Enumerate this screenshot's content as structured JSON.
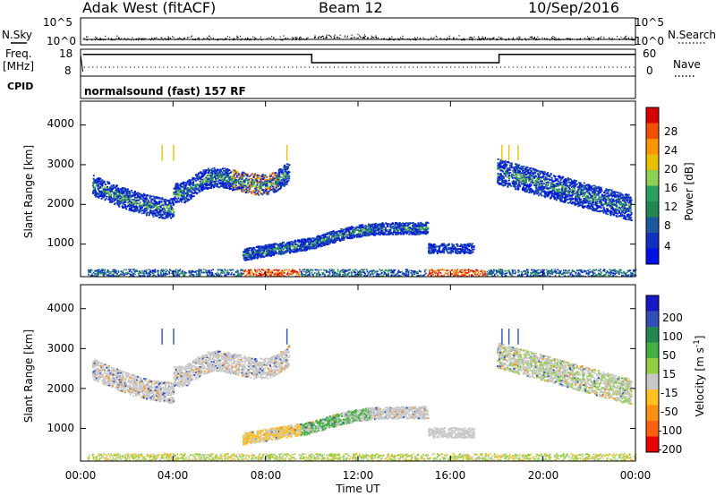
{
  "header": {
    "station": "Adak West (fitACF)",
    "beam": "Beam 12",
    "date": "10/Sep/2016"
  },
  "panel_labels": {
    "nsky": "N.Sky",
    "nsearch": "N.Search",
    "freq": "Freq.",
    "freq_unit": "[MHz]",
    "cpid": "CPID",
    "nave": "Nave",
    "cpid_value": "normalsound (fast) 157 RF"
  },
  "noise_axis": {
    "left_ticks": [
      "10^5",
      "10^0"
    ],
    "right_ticks": [
      "10^5",
      "10^0"
    ]
  },
  "freq_axis": {
    "left_ticks": [
      "18",
      "8"
    ],
    "right_ticks": [
      "60",
      "0"
    ]
  },
  "time_axis": {
    "label": "Time UT",
    "ticks": [
      "00:00",
      "04:00",
      "08:00",
      "12:00",
      "16:00",
      "20:00",
      "00:00"
    ]
  },
  "range_axis": {
    "label": "Slant Range [km]",
    "ticks": [
      "1000",
      "2000",
      "3000",
      "4000"
    ]
  },
  "power_bar": {
    "label": "Power [dB]",
    "ticks": [
      "28",
      "24",
      "20",
      "16",
      "12",
      "8",
      "4"
    ],
    "colors": [
      "#d80000",
      "#f25000",
      "#ff9400",
      "#e8c000",
      "#8ed050",
      "#2aa060",
      "#208850",
      "#1a58a0",
      "#1030c0",
      "#0010e8"
    ]
  },
  "velocity_bar": {
    "label": "Velocity [m s",
    "label_sup": "-1",
    "label_end": "]",
    "ticks": [
      "200",
      "100",
      "50",
      "15",
      "-15",
      "-50",
      "-100",
      "-200"
    ],
    "colors": [
      "#1818c8",
      "#3050b8",
      "#208850",
      "#44b040",
      "#90d040",
      "#c8c8c8",
      "#ffc020",
      "#ff9010",
      "#ff6010",
      "#e80000"
    ]
  },
  "chart_data": [
    {
      "type": "line",
      "title": "N.Sky / N.Search",
      "x_hours": [
        0,
        0.1,
        10,
        14,
        18,
        22,
        24
      ],
      "series": [
        {
          "name": "N.Sky",
          "values": [
            0.5,
            0.5,
            0.6,
            0.7,
            0.6,
            0.5,
            0.5
          ]
        }
      ]
    },
    {
      "type": "line",
      "title": "Freq. / Nave",
      "x_hours": [
        0.1,
        10.0,
        10.0,
        18.1,
        18.1,
        24
      ],
      "series": [
        {
          "name": "Freq. (MHz)",
          "values": [
            15.5,
            15.5,
            11.5,
            11.5,
            15.5,
            15.5
          ]
        },
        {
          "name": "Nave",
          "values": [
            7,
            7,
            7,
            7,
            7,
            7
          ]
        }
      ]
    },
    {
      "type": "heatmap",
      "title": "Power",
      "xlabel": "Time UT",
      "ylabel": "Slant Range [km]",
      "xlim_hours": [
        0,
        24
      ],
      "ylim_km": [
        180,
        4600
      ],
      "colorbar_label": "Power [dB]",
      "features": [
        {
          "name": "evening band",
          "hours": [
            0.5,
            9.0
          ],
          "range_km": [
            1850,
            2800
          ]
        },
        {
          "name": "mid band",
          "hours": [
            7.0,
            15.0
          ],
          "range_km": [
            700,
            1600
          ]
        },
        {
          "name": "patch",
          "hours": [
            15.0,
            17.0
          ],
          "range_km": [
            800,
            1000
          ]
        },
        {
          "name": "morning band",
          "hours": [
            18.0,
            23.8
          ],
          "range_km": [
            1800,
            3000
          ]
        },
        {
          "name": "near-range",
          "hours": [
            0.3,
            24
          ],
          "range_km": [
            200,
            360
          ]
        }
      ]
    },
    {
      "type": "heatmap",
      "title": "Velocity",
      "xlabel": "Time UT",
      "ylabel": "Slant Range [km]",
      "xlim_hours": [
        0,
        24
      ],
      "ylim_km": [
        180,
        4600
      ],
      "colorbar_label": "Velocity [m s-1]",
      "features": [
        {
          "name": "evening band",
          "hours": [
            0.5,
            9.0
          ],
          "range_km": [
            1850,
            2800
          ]
        },
        {
          "name": "mid band",
          "hours": [
            7.0,
            15.0
          ],
          "range_km": [
            700,
            1600
          ]
        },
        {
          "name": "morning band",
          "hours": [
            18.0,
            23.8
          ],
          "range_km": [
            1800,
            3000
          ]
        },
        {
          "name": "near-range",
          "hours": [
            0.3,
            24
          ],
          "range_km": [
            200,
            360
          ]
        }
      ]
    }
  ]
}
